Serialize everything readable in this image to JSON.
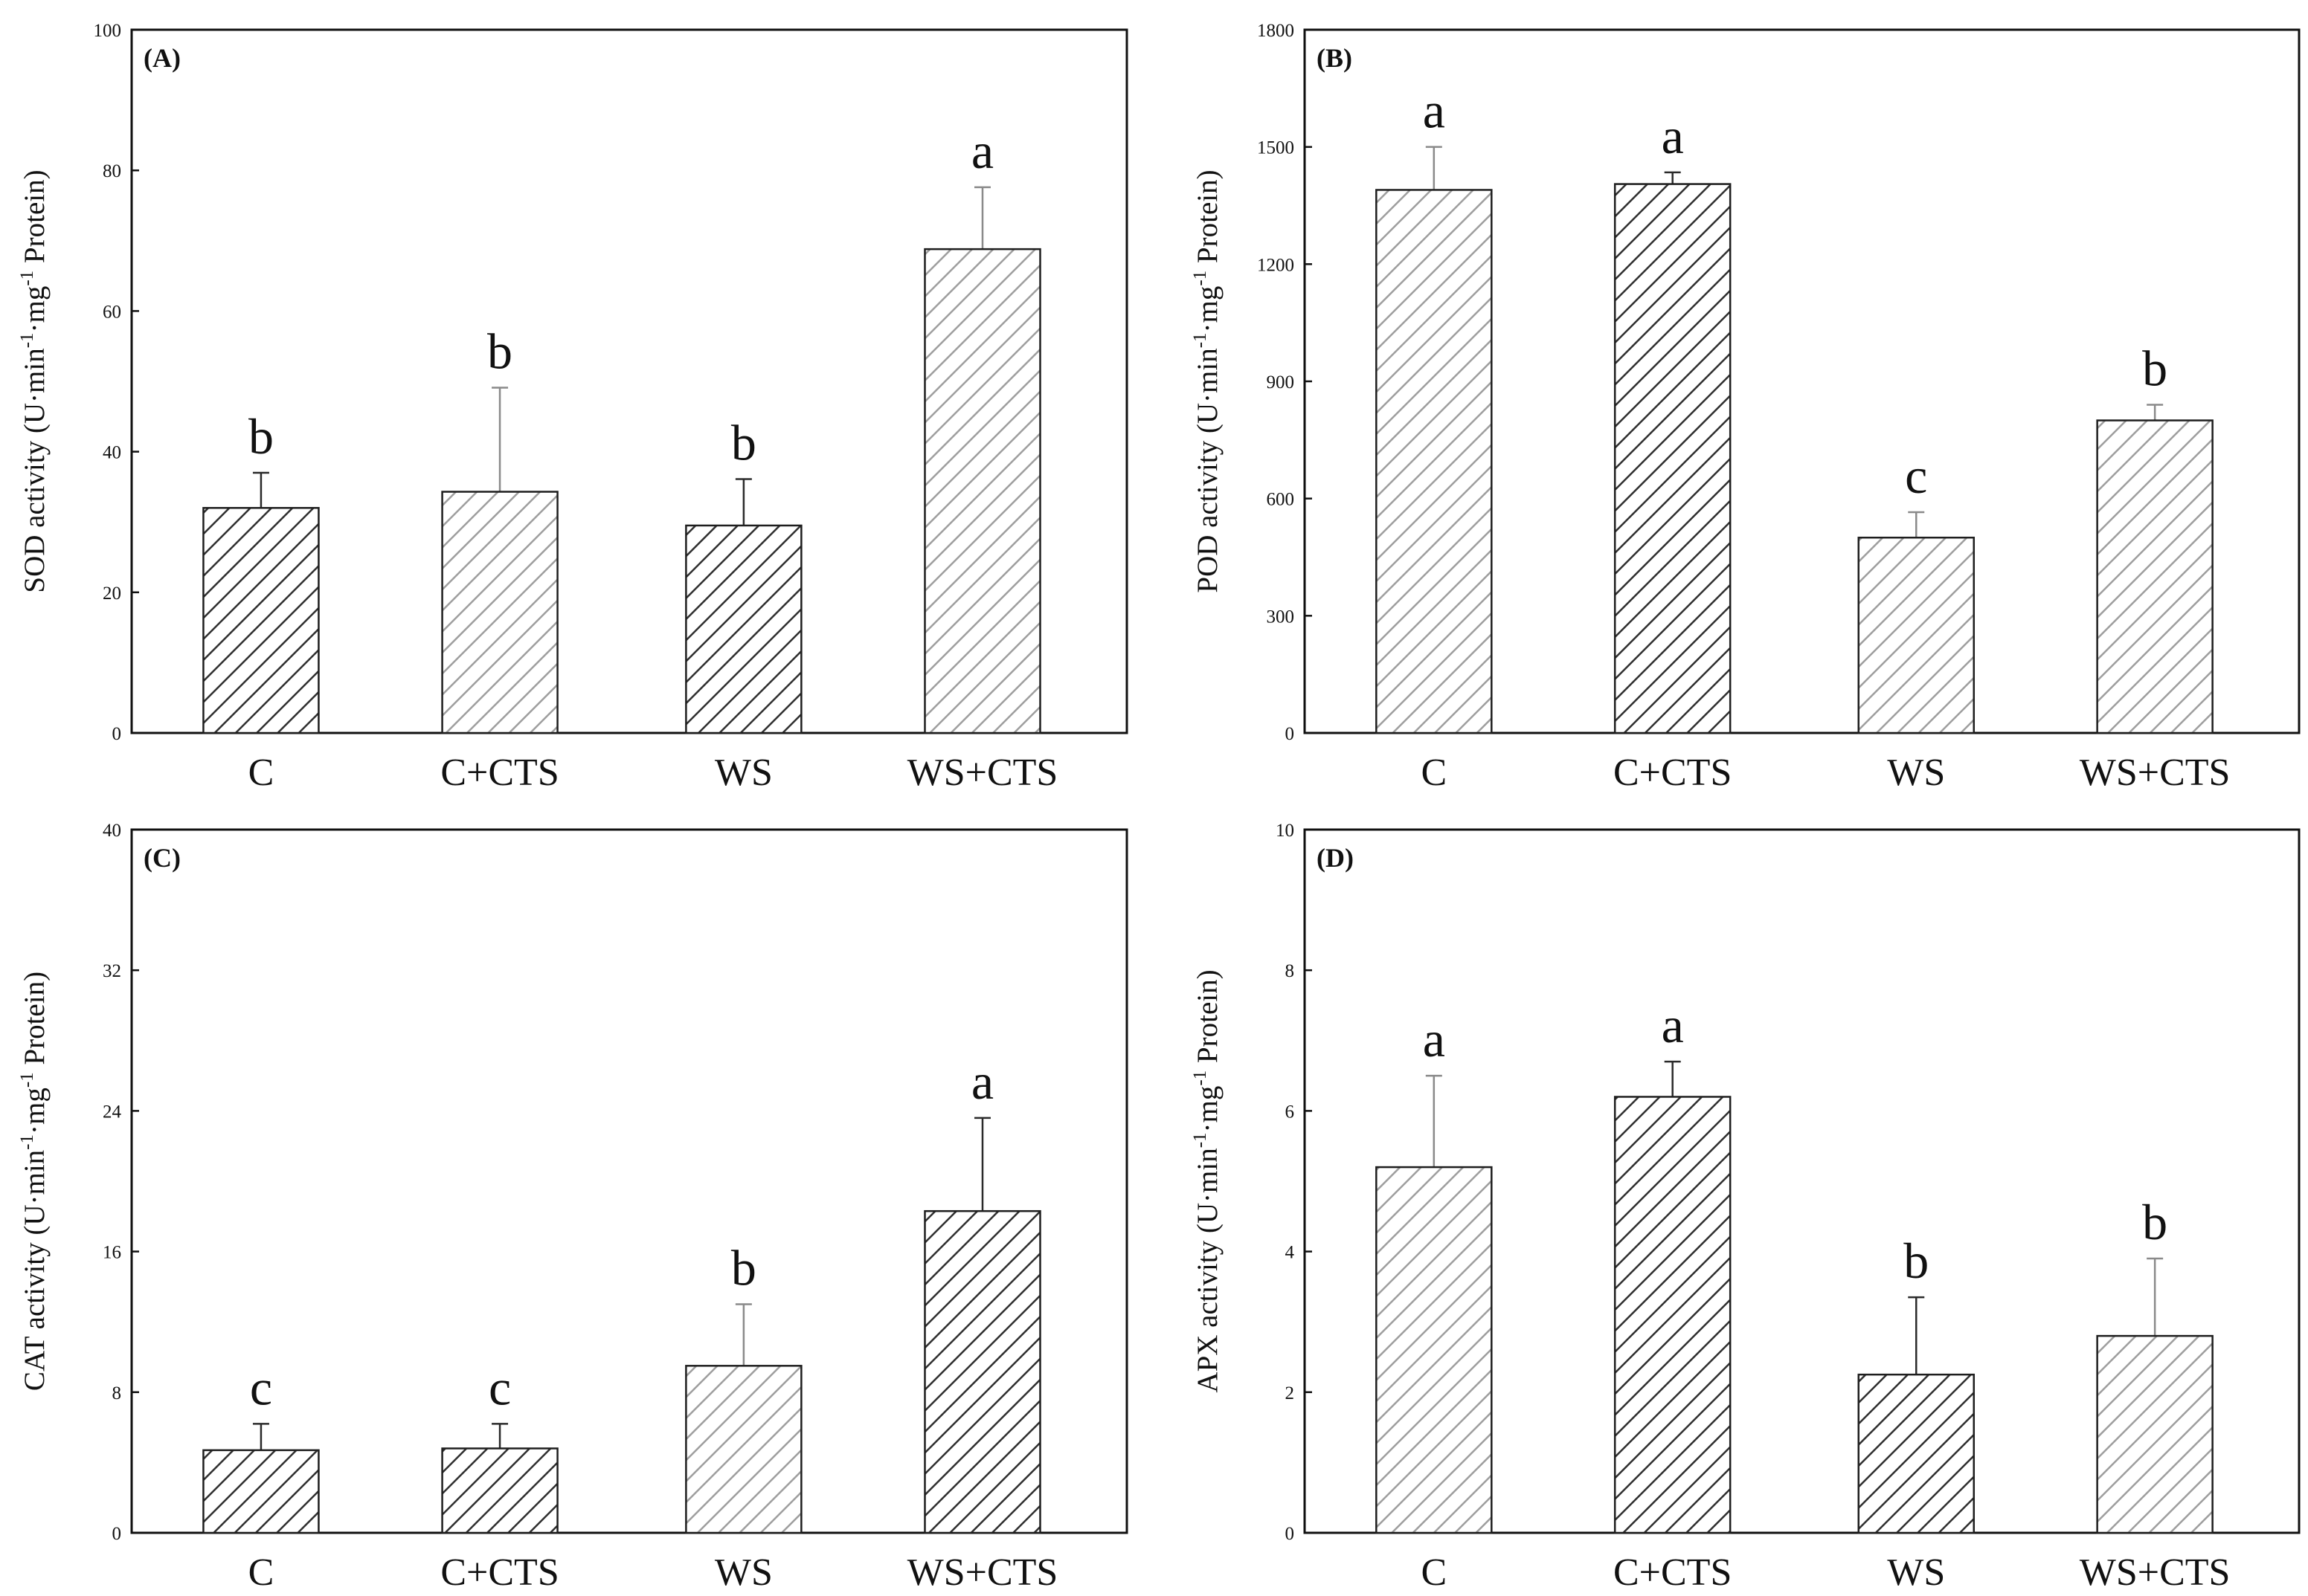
{
  "chart_data": [
    {
      "type": "bar",
      "panel": "(A)",
      "ylabel": "SOD activity (U·min⁻¹·mg⁻¹ Protein)",
      "ylabel_parts": [
        "SOD activity (U·min",
        "-1",
        "·mg",
        "-1",
        " Protein)"
      ],
      "ylim": [
        0,
        100
      ],
      "yticks": [
        0,
        20,
        40,
        60,
        80,
        100
      ],
      "categories": [
        "C",
        "C+CTS",
        "WS",
        "WS+CTS"
      ],
      "values": [
        32,
        34.3,
        29.5,
        68.8
      ],
      "errors": [
        5,
        14.8,
        6.6,
        8.8
      ],
      "significance": [
        "b",
        "b",
        "b",
        "a"
      ],
      "hatch": [
        "dark",
        "light",
        "dark",
        "light"
      ]
    },
    {
      "type": "bar",
      "panel": "(B)",
      "ylabel": "POD activity (U·min⁻¹·mg⁻¹ Protein)",
      "ylabel_parts": [
        "POD activity (U·min",
        "-1",
        "·mg",
        "-1",
        " Protein)"
      ],
      "ylim": [
        0,
        1800
      ],
      "yticks": [
        0,
        300,
        600,
        900,
        1200,
        1500,
        1800
      ],
      "categories": [
        "C",
        "C+CTS",
        "WS",
        "WS+CTS"
      ],
      "values": [
        1390,
        1405,
        500,
        800
      ],
      "errors": [
        110,
        30,
        65,
        40
      ],
      "significance": [
        "a",
        "a",
        "c",
        "b"
      ],
      "hatch": [
        "light",
        "dark",
        "light",
        "light"
      ]
    },
    {
      "type": "bar",
      "panel": "(C)",
      "ylabel": "CAT activity (U·min⁻¹·mg⁻¹ Protein)",
      "ylabel_parts": [
        "CAT activity (U·min",
        "-1",
        "·mg",
        "-1",
        " Protein)"
      ],
      "ylim": [
        0,
        40
      ],
      "yticks": [
        0,
        8,
        16,
        24,
        32,
        40
      ],
      "categories": [
        "C",
        "C+CTS",
        "WS",
        "WS+CTS"
      ],
      "values": [
        4.7,
        4.8,
        9.5,
        18.3
      ],
      "errors": [
        1.5,
        1.4,
        3.5,
        5.3
      ],
      "significance": [
        "c",
        "c",
        "b",
        "a"
      ],
      "hatch": [
        "dark",
        "dark",
        "light",
        "dark"
      ]
    },
    {
      "type": "bar",
      "panel": "(D)",
      "ylabel": "APX activity (U·min⁻¹·mg⁻¹ Protein)",
      "ylabel_parts": [
        "APX activity (U·min",
        "-1",
        "·mg",
        "-1",
        " Protein)"
      ],
      "ylim": [
        0,
        10
      ],
      "yticks": [
        0,
        2,
        4,
        6,
        8,
        10
      ],
      "categories": [
        "C",
        "C+CTS",
        "WS",
        "WS+CTS"
      ],
      "values": [
        5.2,
        6.2,
        2.25,
        2.8
      ],
      "errors": [
        1.3,
        0.5,
        1.1,
        1.1
      ],
      "significance": [
        "a",
        "a",
        "b",
        "b"
      ],
      "hatch": [
        "light",
        "dark",
        "dark",
        "light"
      ]
    }
  ],
  "colors": {
    "dark_hatch": "#2f2f2f",
    "light_hatch": "#9e9e9e",
    "bar_outline": "#1e1e1e",
    "error_bar_dark": "#2a2a2a",
    "error_bar_light": "#8a8a8a",
    "frame": "#111111",
    "background": "#ffffff"
  }
}
